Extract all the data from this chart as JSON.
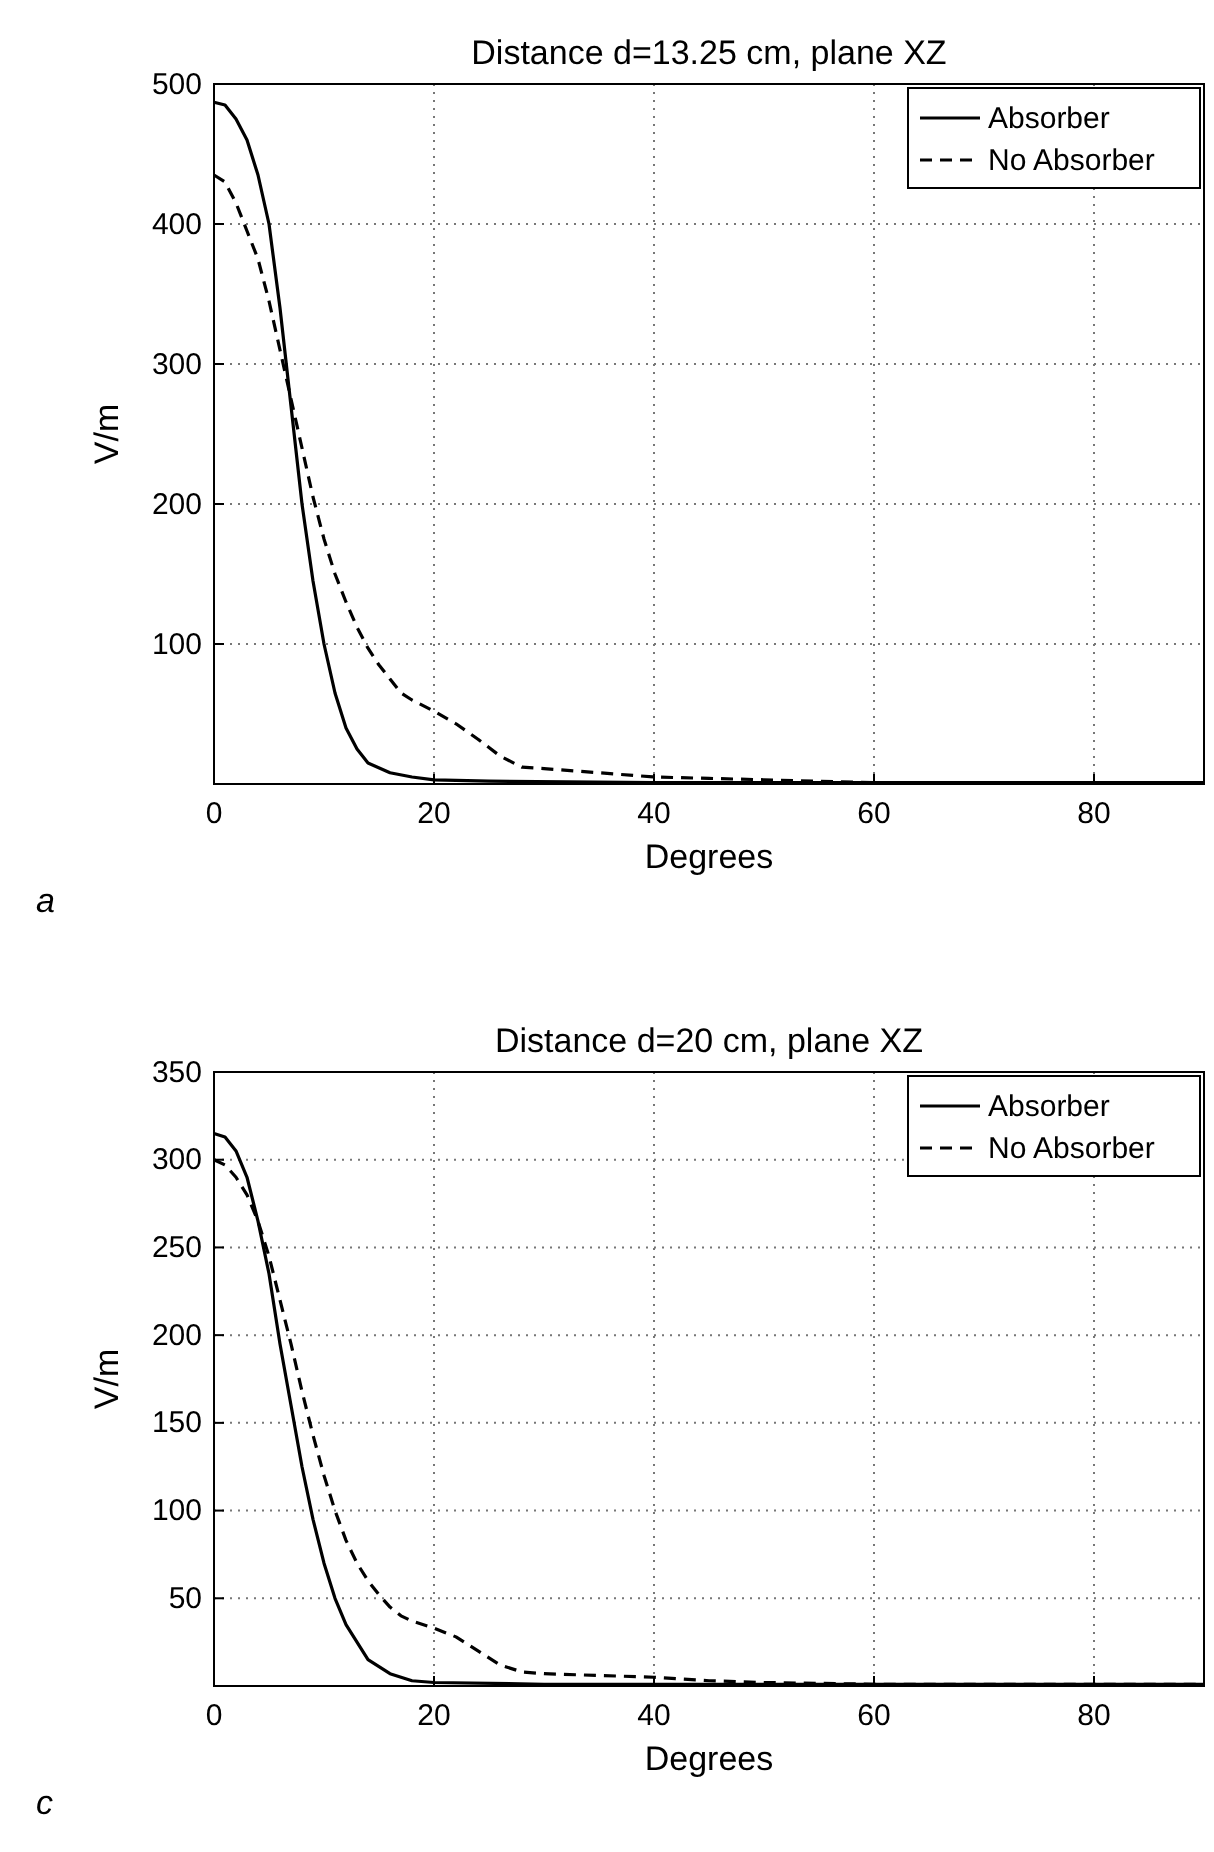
{
  "chart_data": [
    {
      "type": "line",
      "title": "Distance d=13.25 cm, plane XZ",
      "xlabel": "Degrees",
      "ylabel": "V/m",
      "annotations": [
        "a"
      ],
      "xlim": [
        0,
        90
      ],
      "xticks": [
        0,
        20,
        40,
        60,
        80
      ],
      "ylim": [
        0,
        500
      ],
      "yticks": [
        100,
        200,
        300,
        400,
        500
      ],
      "grid": true,
      "legend": "top right",
      "series": [
        {
          "name": "Absorber",
          "color": "#000000",
          "line_style": "solid",
          "x": [
            0,
            1,
            2,
            3,
            4,
            5,
            6,
            7,
            8,
            9,
            10,
            11,
            12,
            13,
            14,
            16,
            18,
            20,
            25,
            40,
            60,
            90
          ],
          "values": [
            487,
            485,
            475,
            460,
            435,
            400,
            340,
            270,
            200,
            145,
            100,
            65,
            40,
            25,
            15,
            8,
            5,
            3,
            2,
            1,
            1,
            1
          ]
        },
        {
          "name": "No Absorber",
          "color": "#000000",
          "line_style": "dashed",
          "x": [
            0,
            1,
            2,
            3,
            4,
            5,
            6,
            7,
            8,
            9,
            10,
            11,
            12,
            13,
            14,
            15,
            16,
            17,
            18,
            20,
            22,
            24,
            26,
            28,
            30,
            35,
            40,
            45,
            50,
            60,
            90
          ],
          "values": [
            435,
            430,
            415,
            395,
            375,
            345,
            310,
            275,
            240,
            205,
            175,
            150,
            130,
            112,
            97,
            85,
            75,
            65,
            60,
            52,
            43,
            32,
            20,
            12,
            11,
            8,
            5,
            4,
            3,
            1,
            1
          ]
        }
      ]
    },
    {
      "type": "line",
      "title": "Distance d=20 cm, plane XZ",
      "xlabel": "Degrees",
      "ylabel": "V/m",
      "annotations": [
        "c"
      ],
      "xlim": [
        0,
        90
      ],
      "xticks": [
        0,
        20,
        40,
        60,
        80
      ],
      "ylim": [
        0,
        350
      ],
      "yticks": [
        50,
        100,
        150,
        200,
        250,
        300,
        350
      ],
      "grid": true,
      "legend": "top right",
      "series": [
        {
          "name": "Absorber",
          "color": "#000000",
          "line_style": "solid",
          "x": [
            0,
            1,
            2,
            3,
            4,
            5,
            6,
            7,
            8,
            9,
            10,
            11,
            12,
            13,
            14,
            16,
            18,
            20,
            30,
            90
          ],
          "values": [
            315,
            313,
            305,
            290,
            265,
            235,
            195,
            160,
            125,
            95,
            70,
            50,
            35,
            25,
            15,
            7,
            3,
            2,
            1,
            1
          ]
        },
        {
          "name": "No Absorber",
          "color": "#000000",
          "line_style": "dashed",
          "x": [
            0,
            1,
            2,
            3,
            4,
            5,
            6,
            7,
            8,
            9,
            10,
            11,
            12,
            13,
            14,
            15,
            16,
            17,
            18,
            20,
            22,
            24,
            26,
            28,
            30,
            35,
            40,
            45,
            50,
            60,
            90
          ],
          "values": [
            300,
            297,
            290,
            280,
            265,
            245,
            220,
            195,
            168,
            143,
            120,
            100,
            83,
            70,
            60,
            52,
            45,
            40,
            37,
            33,
            28,
            20,
            12,
            8,
            7,
            6,
            5,
            3,
            2,
            1,
            1
          ]
        }
      ]
    }
  ]
}
